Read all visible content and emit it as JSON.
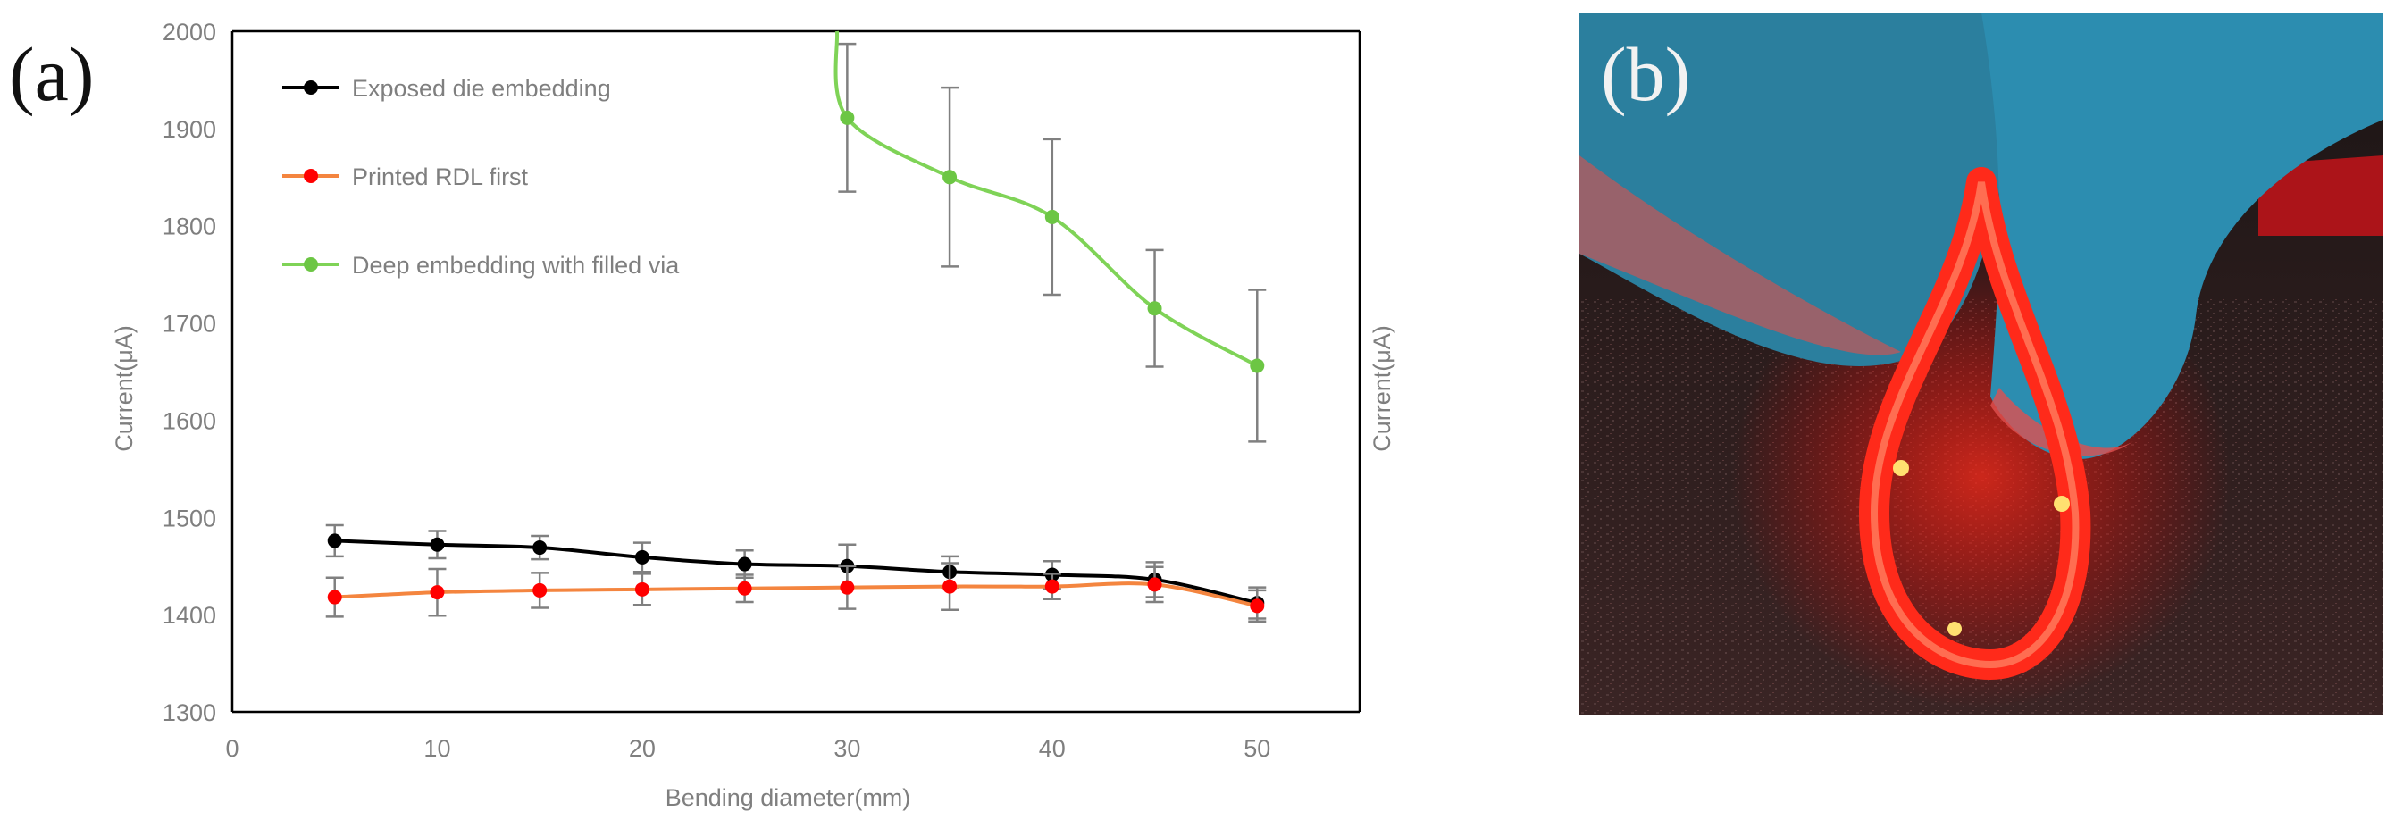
{
  "panels": {
    "a_label": "(a)",
    "b_label": "(b)"
  },
  "chart_data": {
    "type": "line",
    "xlabel": "Bending diameter(mm)",
    "ylabel": "Current(μA)",
    "right_ylabel": "Current(μA)",
    "xlim": [
      0,
      55
    ],
    "ylim": [
      1300,
      2000
    ],
    "xticks": [
      0,
      10,
      20,
      30,
      40,
      50
    ],
    "yticks": [
      1300,
      1400,
      1500,
      1600,
      1700,
      1800,
      1900,
      2000
    ],
    "grid": false,
    "legend_position": "top-left",
    "series": [
      {
        "name": "Exposed die embedding",
        "color": "#000000",
        "line_color": "#000000",
        "x": [
          5,
          10,
          15,
          20,
          25,
          30,
          35,
          40,
          45,
          50
        ],
        "y": [
          1476,
          1472,
          1469,
          1459,
          1452,
          1450,
          1444,
          1441,
          1436,
          1412
        ],
        "err": [
          16,
          14,
          12,
          15,
          14,
          22,
          16,
          14,
          18,
          16
        ]
      },
      {
        "name": "Printed RDL first",
        "color": "#ff0000",
        "line_color": "#f4853f",
        "x": [
          5,
          10,
          15,
          20,
          25,
          30,
          35,
          40,
          45,
          50
        ],
        "y": [
          1418,
          1423,
          1425,
          1426,
          1427,
          1428,
          1429,
          1429,
          1431,
          1409
        ],
        "err": [
          20,
          24,
          18,
          16,
          14,
          22,
          24,
          13,
          18,
          16
        ]
      },
      {
        "name": "Deep embedding with filled via",
        "color": "#6cc644",
        "line_color": "#7fd357",
        "x": [
          30,
          35,
          40,
          45,
          50
        ],
        "y": [
          1911,
          1850,
          1809,
          1715,
          1656
        ],
        "err": [
          76,
          92,
          80,
          60,
          78
        ],
        "curve_start": {
          "x": 29.5,
          "y": 2000
        }
      }
    ]
  },
  "photo": {
    "description_icon": "led-strip-photo-icon"
  }
}
